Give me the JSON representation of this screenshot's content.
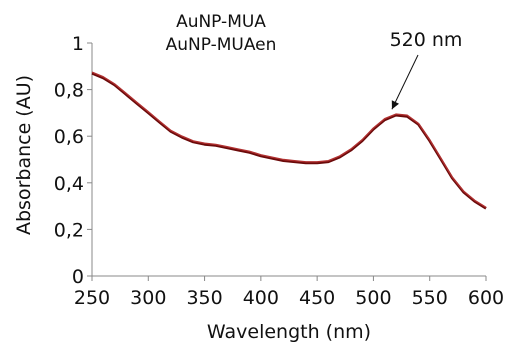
{
  "chart_data": {
    "type": "line",
    "xlabel": "Wavelength (nm)",
    "ylabel": "Absorbance (AU)",
    "xlim": [
      250,
      600
    ],
    "ylim": [
      0,
      1
    ],
    "xticks": [
      250,
      300,
      350,
      400,
      450,
      500,
      550,
      600
    ],
    "xtick_labels": [
      "250",
      "300",
      "350",
      "400",
      "450",
      "500",
      "550",
      "600"
    ],
    "yticks": [
      0,
      0.2,
      0.4,
      0.6,
      0.8,
      1
    ],
    "ytick_labels": [
      "0",
      "0,2",
      "0,4",
      "0,6",
      "0,8",
      "1"
    ],
    "legend": [
      "AuNP-MUA",
      "AuNP-MUAen"
    ],
    "series": [
      {
        "name": "AuNP-MUA",
        "color": "#6b0a0a",
        "x": [
          250,
          260,
          270,
          280,
          290,
          300,
          310,
          320,
          330,
          340,
          350,
          360,
          370,
          380,
          390,
          400,
          410,
          420,
          430,
          440,
          450,
          460,
          470,
          480,
          490,
          500,
          510,
          520,
          530,
          540,
          550,
          560,
          570,
          580,
          590,
          600
        ],
        "y": [
          0.87,
          0.85,
          0.82,
          0.78,
          0.74,
          0.7,
          0.66,
          0.62,
          0.595,
          0.575,
          0.565,
          0.56,
          0.55,
          0.54,
          0.53,
          0.515,
          0.505,
          0.495,
          0.49,
          0.485,
          0.485,
          0.49,
          0.51,
          0.54,
          0.58,
          0.63,
          0.67,
          0.69,
          0.685,
          0.65,
          0.58,
          0.5,
          0.42,
          0.36,
          0.32,
          0.29
        ]
      },
      {
        "name": "AuNP-MUAen",
        "color": "#b03030",
        "x": [
          250,
          260,
          270,
          280,
          290,
          300,
          310,
          320,
          330,
          340,
          350,
          360,
          370,
          380,
          390,
          400,
          410,
          420,
          430,
          440,
          450,
          460,
          470,
          480,
          490,
          500,
          510,
          520,
          530,
          540,
          550,
          560,
          570,
          580,
          590,
          600
        ],
        "y": [
          0.875,
          0.855,
          0.825,
          0.785,
          0.745,
          0.705,
          0.665,
          0.625,
          0.6,
          0.58,
          0.57,
          0.565,
          0.555,
          0.545,
          0.535,
          0.52,
          0.51,
          0.5,
          0.495,
          0.49,
          0.49,
          0.495,
          0.515,
          0.545,
          0.585,
          0.635,
          0.675,
          0.695,
          0.69,
          0.655,
          0.585,
          0.505,
          0.425,
          0.365,
          0.325,
          0.295
        ]
      }
    ],
    "annotations": [
      {
        "text": "520 nm",
        "x": 520,
        "y": 0.69
      }
    ],
    "grid": false
  }
}
